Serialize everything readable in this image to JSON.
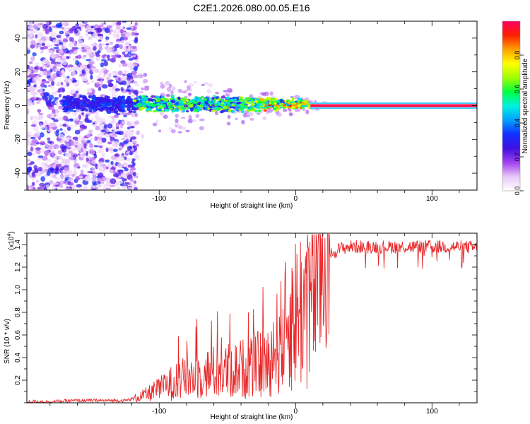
{
  "title": "C2E1.2026.080.00.05.E16",
  "chart_data": [
    {
      "type": "heatmap",
      "name": "spectrogram",
      "xlabel": "Height of straight line (km)",
      "ylabel": "Frequency (Hz)",
      "xlim": [
        -197,
        133
      ],
      "ylim": [
        -50,
        50
      ],
      "xticks": [
        -100,
        0,
        100
      ],
      "xtick_labels": [
        "-100",
        "0",
        "100"
      ],
      "yticks": [
        -40,
        -20,
        0,
        20,
        40
      ],
      "ytick_labels": [
        "-40",
        "-20",
        "0",
        "20",
        "40"
      ],
      "colorbar": {
        "label": "Normalized spectral amplitude",
        "range": [
          0,
          1
        ],
        "ticks": [
          0,
          0.2,
          0.4,
          0.6,
          0.8
        ],
        "tick_labels": [
          "0.0",
          "0.2",
          "0.4",
          "0.6",
          "0.8"
        ],
        "colors": [
          "#ffffff",
          "#e8c8f8",
          "#a040f0",
          "#4010e0",
          "#1030ff",
          "#00a0ff",
          "#00f0e0",
          "#00ff40",
          "#a0ff00",
          "#ffff00",
          "#ffa000",
          "#ff2000",
          "#ff0060"
        ]
      },
      "signal_line": {
        "frequency": 0,
        "x_start": 10,
        "x_end": 133,
        "amplitude": 0.98
      }
    },
    {
      "type": "line",
      "name": "snr",
      "xlabel": "Height of straight line (km)",
      "ylabel": "SNR (10 * v/v)",
      "yscale_label": "(x10",
      "yscale_exp": "4",
      "yscale_close": ")",
      "xlim": [
        -197,
        133
      ],
      "ylim": [
        0,
        1.5
      ],
      "xticks": [
        -100,
        0,
        100
      ],
      "xtick_labels": [
        "-100",
        "0",
        "100"
      ],
      "yticks": [
        0.2,
        0.4,
        0.6,
        0.8,
        1.0,
        1.2,
        1.4
      ],
      "ytick_labels": [
        "0.2",
        "0.4",
        "0.6",
        "0.8",
        "1.0",
        "1.2",
        "1.4"
      ],
      "color": "#e8282a",
      "series": [
        {
          "name": "SNR",
          "x": [
            -197,
            -180,
            -160,
            -140,
            -125,
            -118,
            -110,
            -100,
            -90,
            -80,
            -70,
            -60,
            -50,
            -40,
            -30,
            -20,
            -15,
            -10,
            -5,
            0,
            5,
            10,
            15,
            20,
            25,
            30,
            35,
            40,
            60,
            80,
            100,
            120,
            133
          ],
          "y": [
            0.01,
            0.01,
            0.02,
            0.02,
            0.02,
            0.04,
            0.07,
            0.12,
            0.18,
            0.22,
            0.25,
            0.27,
            0.28,
            0.3,
            0.33,
            0.35,
            0.5,
            0.6,
            0.72,
            0.8,
            0.85,
            0.95,
            1.05,
            1.2,
            1.3,
            1.35,
            1.37,
            1.38,
            1.38,
            1.38,
            1.38,
            1.38,
            1.37
          ]
        }
      ]
    }
  ]
}
